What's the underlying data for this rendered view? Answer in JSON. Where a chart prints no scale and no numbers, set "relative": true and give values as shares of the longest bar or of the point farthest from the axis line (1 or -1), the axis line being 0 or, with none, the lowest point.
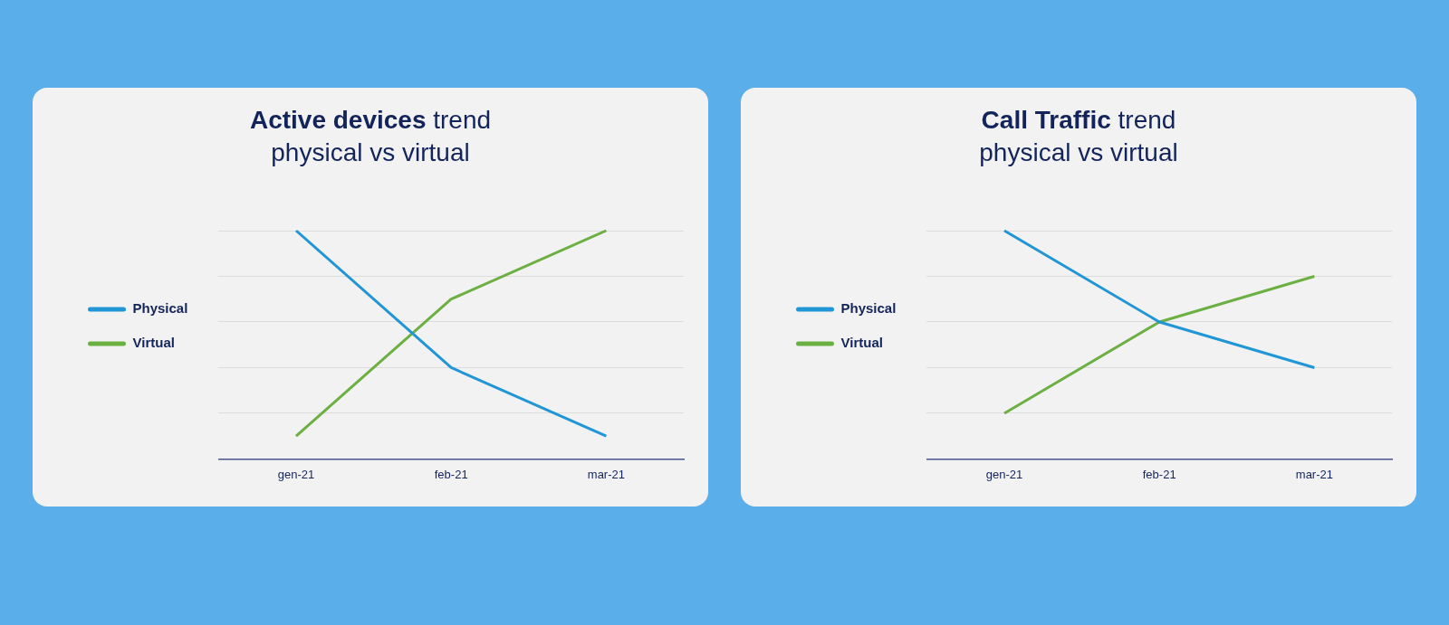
{
  "chart_data": [
    {
      "type": "line",
      "title": "Active devices trend",
      "subtitle": "physical vs virtual",
      "categories": [
        "gen-21",
        "feb-21",
        "mar-21"
      ],
      "relative": true,
      "grid": "y",
      "legend": "left",
      "marker": "none",
      "series": [
        {
          "name": "Physical",
          "color": "#2196d6",
          "values": [
            1,
            0.4,
            0.1
          ]
        },
        {
          "name": "Virtual",
          "color": "#6cb043",
          "values": [
            0.1,
            0.7,
            1
          ]
        }
      ]
    },
    {
      "type": "line",
      "title": "Call Traffic trend",
      "subtitle": "physical vs virtual",
      "categories": [
        "gen-21",
        "feb-21",
        "mar-21"
      ],
      "relative": true,
      "grid": "y",
      "legend": "left",
      "marker": "none",
      "series": [
        {
          "name": "Physical",
          "color": "#2196d6",
          "values": [
            1,
            0.6,
            0.4
          ]
        },
        {
          "name": "Virtual",
          "color": "#6cb043",
          "values": [
            0.2,
            0.6,
            0.8
          ]
        }
      ]
    }
  ]
}
